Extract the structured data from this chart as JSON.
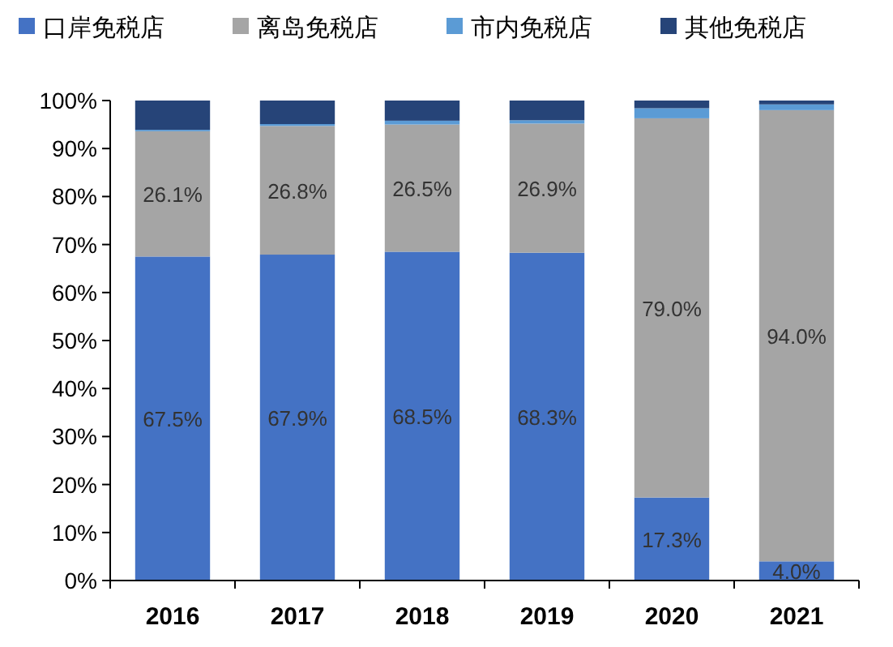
{
  "chart_data": {
    "type": "bar",
    "stacked": true,
    "legend": "top",
    "grid": false,
    "categories": [
      "2016",
      "2017",
      "2018",
      "2019",
      "2020",
      "2021"
    ],
    "ylim": [
      0,
      100
    ],
    "yticks": [
      {
        "value": 0,
        "label": "0%"
      },
      {
        "value": 10,
        "label": "10%"
      },
      {
        "value": 20,
        "label": "20%"
      },
      {
        "value": 30,
        "label": "30%"
      },
      {
        "value": 40,
        "label": "40%"
      },
      {
        "value": 50,
        "label": "50%"
      },
      {
        "value": 60,
        "label": "60%"
      },
      {
        "value": 70,
        "label": "70%"
      },
      {
        "value": 80,
        "label": "80%"
      },
      {
        "value": 90,
        "label": "90%"
      },
      {
        "value": 100,
        "label": "100%"
      }
    ],
    "series": [
      {
        "name": "口岸免税店",
        "color": "#4472c4",
        "values": [
          67.5,
          67.9,
          68.5,
          68.3,
          17.3,
          4.0
        ],
        "value_labels": [
          "67.5%",
          "67.9%",
          "68.5%",
          "68.3%",
          "17.3%",
          "4.0%"
        ]
      },
      {
        "name": "离岛免税店",
        "color": "#a5a5a5",
        "values": [
          26.1,
          26.8,
          26.5,
          26.9,
          79.0,
          94.0
        ],
        "value_labels": [
          "26.1%",
          "26.8%",
          "26.5%",
          "26.9%",
          "79.0%",
          "94.0%"
        ]
      },
      {
        "name": "市内免税店",
        "color": "#5b9bd5",
        "values": [
          0.3,
          0.4,
          0.8,
          0.7,
          2.1,
          1.2
        ]
      },
      {
        "name": "其他免税店",
        "color": "#264478",
        "values": [
          6.1,
          4.9,
          4.2,
          4.1,
          1.6,
          0.8
        ]
      }
    ]
  }
}
